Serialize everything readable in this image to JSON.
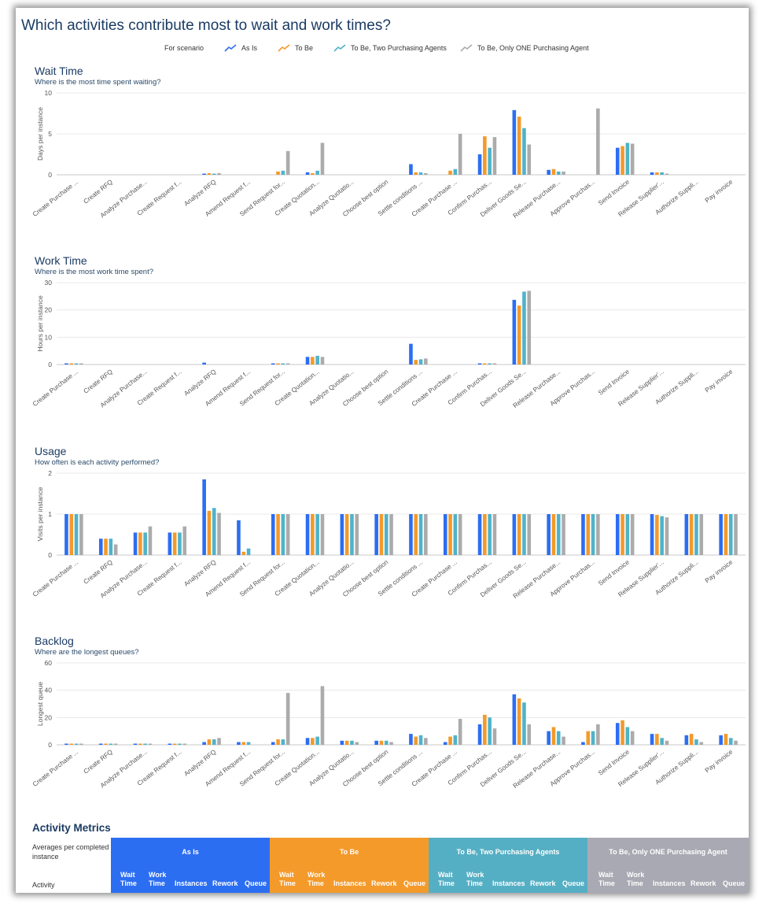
{
  "page": {
    "title": "Which activities contribute most to wait and work times?",
    "legend_label": "For scenario"
  },
  "scenarios": [
    {
      "name": "As Is",
      "color": "#2c6ef2"
    },
    {
      "name": "To Be",
      "color": "#f39a2b"
    },
    {
      "name": "To Be, Two Purchasing Agents",
      "color": "#4fb3c9"
    },
    {
      "name": "To Be, Only ONE Purchasing Agent",
      "color": "#ababab"
    }
  ],
  "activities": [
    "Create Purchase ...",
    "Create RFQ",
    "Analyze Purchase...",
    "Create Request f...",
    "Analyze RFQ",
    "Amend Request f...",
    "Send Request for...",
    "Create Quotation...",
    "Analyze Quotatio...",
    "Choose best option",
    "Settle conditions ...",
    "Create Purchase ...",
    "Confirm Purchas...",
    "Deliver Goods Se...",
    "Release Purchase...",
    "Approve Purchas...",
    "Send Invoice",
    "Release Supplier'...",
    "Authorize Suppli...",
    "Pay invoice"
  ],
  "chart_data": [
    {
      "type": "bar",
      "title": "Wait Time",
      "subtitle": "Where is the most time spent waiting?",
      "ylabel": "Days per instance",
      "ylim": [
        0,
        10
      ],
      "yticks": [
        0,
        5,
        10
      ],
      "series": [
        {
          "name": "As Is",
          "values": [
            0,
            0,
            0,
            0,
            0.1,
            0,
            0,
            0.3,
            0,
            0,
            1.3,
            0,
            2.5,
            7.9,
            0.6,
            0,
            3.3,
            0.3,
            0,
            0
          ]
        },
        {
          "name": "To Be",
          "values": [
            0,
            0,
            0,
            0,
            0.2,
            0,
            0.4,
            0.2,
            0,
            0,
            0.3,
            0.5,
            4.7,
            7.1,
            0.7,
            0,
            3.5,
            0.3,
            0,
            0
          ]
        },
        {
          "name": "To Be, Two Purchasing Agents",
          "values": [
            0,
            0,
            0,
            0,
            0.1,
            0,
            0.5,
            0.5,
            0,
            0,
            0.3,
            0.7,
            3.3,
            5.7,
            0.4,
            0,
            3.9,
            0.3,
            0,
            0
          ]
        },
        {
          "name": "To Be, Only ONE Purchasing Agent",
          "values": [
            0,
            0,
            0,
            0,
            0.2,
            0,
            2.9,
            3.9,
            0,
            0,
            0.2,
            5.0,
            4.6,
            3.7,
            0.4,
            8.1,
            3.8,
            0.1,
            0,
            0
          ]
        }
      ]
    },
    {
      "type": "bar",
      "title": "Work Time",
      "subtitle": "Where is the most work time spent?",
      "ylabel": "Hours per instance",
      "ylim": [
        0,
        30
      ],
      "yticks": [
        0,
        10,
        20,
        30
      ],
      "series": [
        {
          "name": "As Is",
          "values": [
            0.2,
            0,
            0,
            0,
            0.7,
            0,
            0.2,
            2.8,
            0,
            0,
            7.6,
            0,
            0.2,
            23.7,
            0,
            0,
            0,
            0,
            0,
            0
          ]
        },
        {
          "name": "To Be",
          "values": [
            0.2,
            0,
            0,
            0,
            0,
            0,
            0.2,
            2.8,
            0,
            0,
            1.7,
            0,
            0.2,
            21.6,
            0,
            0,
            0,
            0,
            0,
            0
          ]
        },
        {
          "name": "To Be, Two Purchasing Agents",
          "values": [
            0.2,
            0,
            0,
            0,
            0,
            0,
            0.2,
            3.2,
            0,
            0,
            1.9,
            0,
            0.2,
            26.7,
            0,
            0,
            0,
            0,
            0,
            0
          ]
        },
        {
          "name": "To Be, Only ONE Purchasing Agent",
          "values": [
            0.2,
            0,
            0,
            0,
            0,
            0,
            0.2,
            2.8,
            0,
            0,
            2.2,
            0,
            0.2,
            27.0,
            0,
            0,
            0,
            0,
            0,
            0
          ]
        }
      ]
    },
    {
      "type": "bar",
      "title": "Usage",
      "subtitle": "How often is each activity performed?",
      "ylabel": "Visits per instance",
      "ylim": [
        0,
        2
      ],
      "yticks": [
        0,
        1,
        2
      ],
      "series": [
        {
          "name": "As Is",
          "values": [
            1,
            0.4,
            0.55,
            0.55,
            1.85,
            0.85,
            1,
            1,
            1,
            1,
            1,
            1,
            1,
            1,
            1,
            1,
            1,
            1,
            1,
            1
          ]
        },
        {
          "name": "To Be",
          "values": [
            1,
            0.4,
            0.55,
            0.55,
            1.08,
            0.08,
            1,
            1,
            1,
            1,
            1,
            1,
            1,
            1,
            1,
            1,
            1,
            0.98,
            1,
            1
          ]
        },
        {
          "name": "To Be, Two Purchasing Agents",
          "values": [
            1,
            0.4,
            0.55,
            0.55,
            1.15,
            0.16,
            1,
            1,
            1,
            1,
            1,
            1,
            1,
            1,
            1,
            1,
            1,
            0.95,
            1,
            1
          ]
        },
        {
          "name": "To Be, Only ONE Purchasing Agent",
          "values": [
            1,
            0.26,
            0.7,
            0.7,
            1.03,
            0,
            1,
            1,
            1,
            1,
            1,
            1,
            1,
            1,
            1,
            1,
            1,
            0.92,
            1,
            1
          ]
        }
      ]
    },
    {
      "type": "bar",
      "title": "Backlog",
      "subtitle": "Where are the longest queues?",
      "ylabel": "Longest queue",
      "ylim": [
        0,
        60
      ],
      "yticks": [
        0,
        20,
        40,
        60
      ],
      "series": [
        {
          "name": "As Is",
          "values": [
            0.5,
            0.5,
            0.5,
            0.5,
            2,
            2,
            2,
            5,
            3,
            3,
            8,
            2,
            15,
            37,
            10,
            2,
            16,
            8,
            7,
            7
          ]
        },
        {
          "name": "To Be",
          "values": [
            0.5,
            0.5,
            0.5,
            0.5,
            4,
            2,
            4,
            5,
            3,
            3,
            6,
            6,
            22,
            34,
            13,
            10,
            18,
            8,
            8,
            8
          ]
        },
        {
          "name": "To Be, Two Purchasing Agents",
          "values": [
            0.5,
            0.5,
            0.5,
            0.5,
            4,
            2,
            4,
            6,
            3,
            3,
            7,
            7,
            20,
            31,
            10,
            10,
            13,
            5,
            4,
            5
          ]
        },
        {
          "name": "To Be, Only ONE Purchasing Agent",
          "values": [
            0.5,
            0.5,
            0.5,
            0.5,
            5,
            0,
            38,
            43,
            2,
            2,
            5,
            19,
            12,
            15,
            6,
            15,
            10,
            3,
            2,
            3
          ]
        }
      ]
    }
  ],
  "metrics": {
    "title": "Activity Metrics",
    "averages_label": "Averages per completed instance",
    "activity_col": "Activity",
    "groups": [
      "As Is",
      "To Be",
      "To Be, Two Purchasing Agents",
      "To Be, Only ONE Purchasing Agent"
    ],
    "columns": [
      "Wait Time",
      "Work Time",
      "Instances",
      "Rework",
      "Queue"
    ]
  }
}
